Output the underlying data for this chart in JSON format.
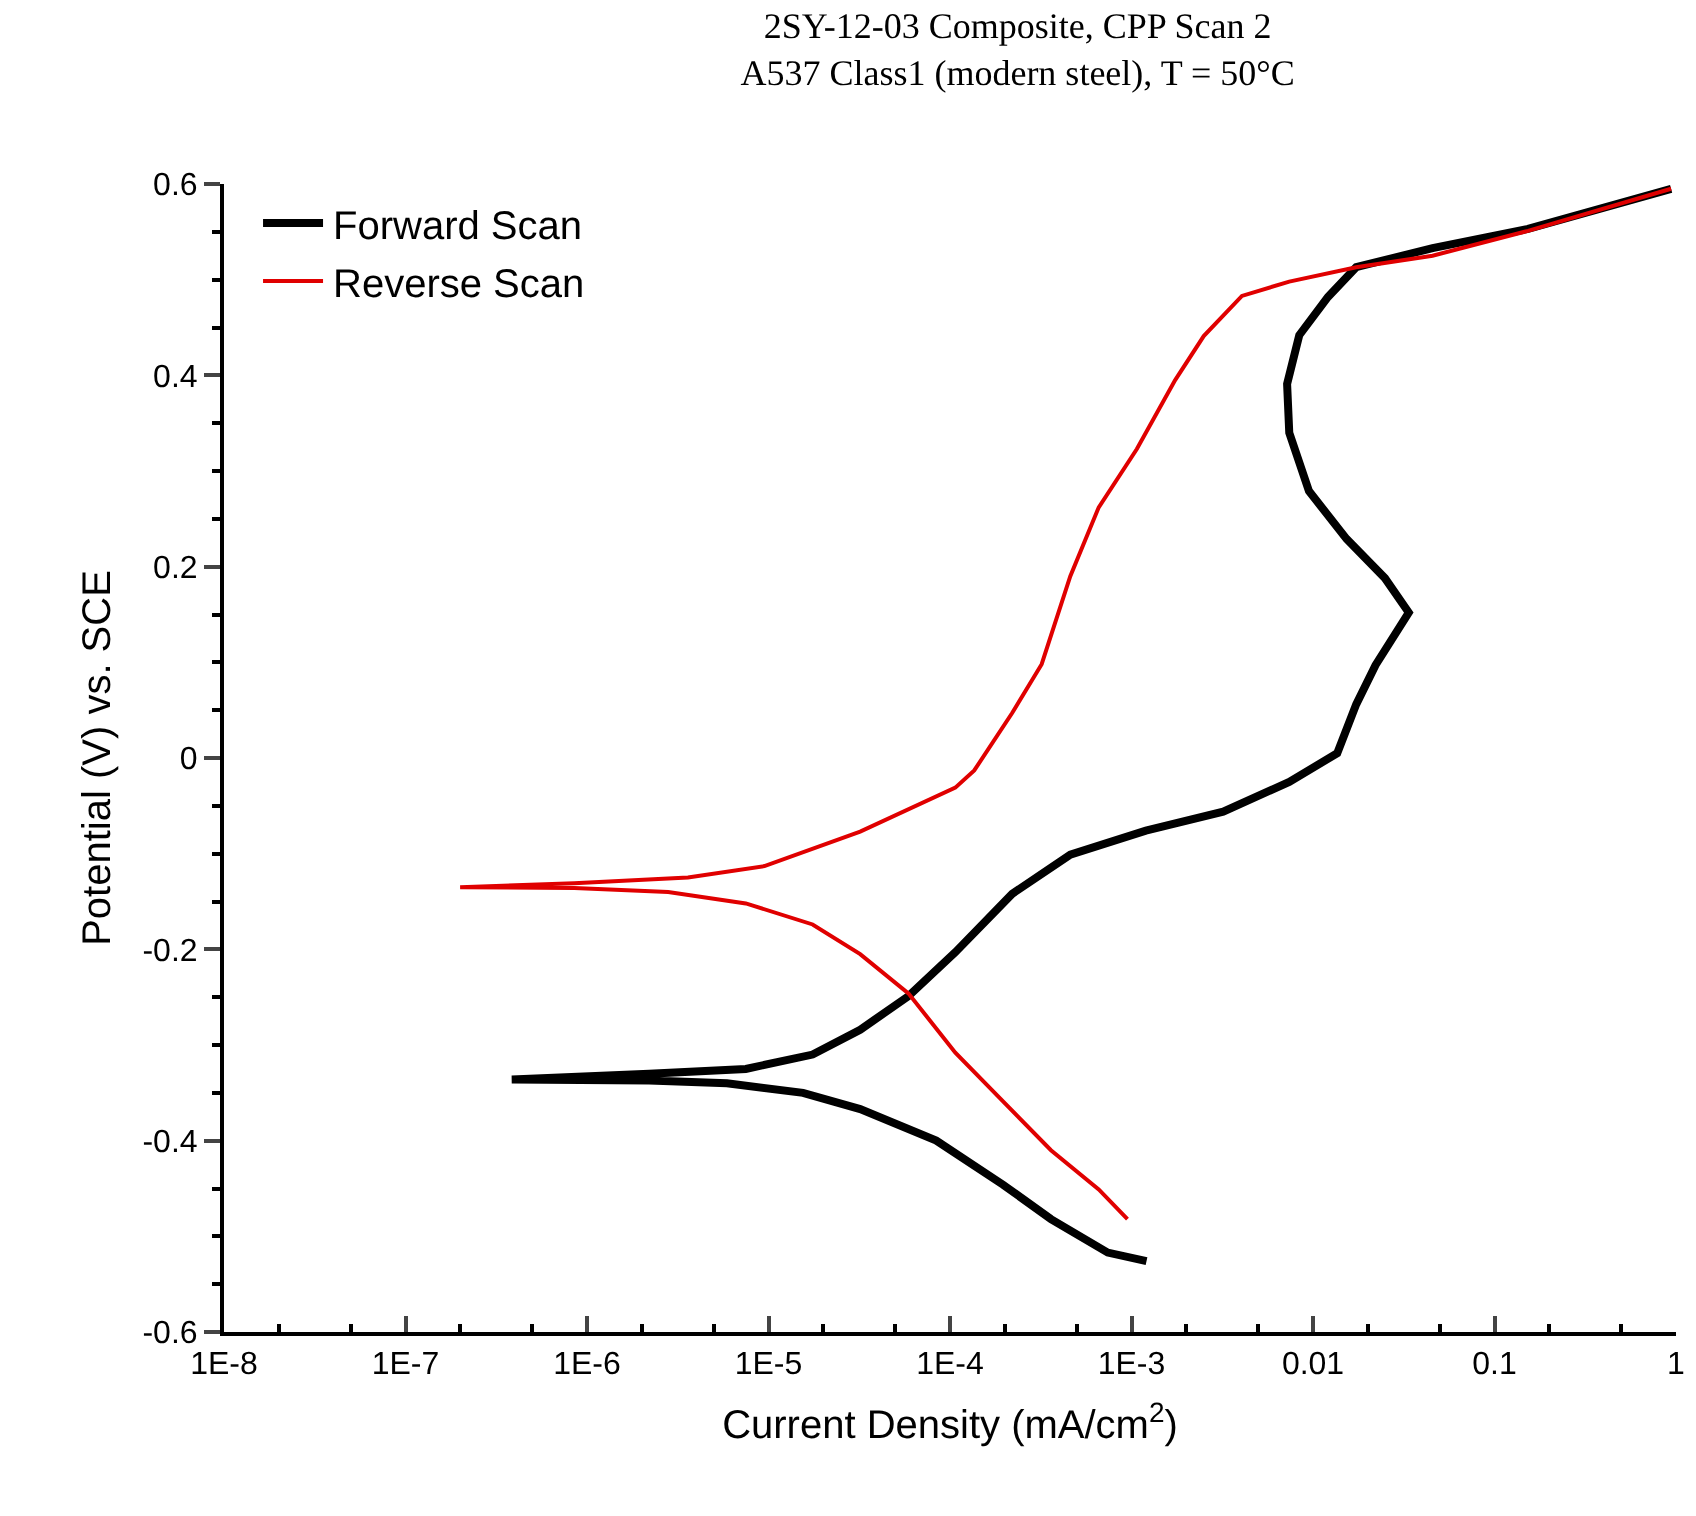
{
  "chart_data": {
    "type": "line",
    "title": "2SY-12-03 Composite, CPP Scan 2",
    "subtitle": "A537 Class1 (modern steel), T = 50°C",
    "xlabel": "Current Density (mA/cm$^{2}$)",
    "ylabel": "Potential (V) vs. SCE",
    "log": "x",
    "grid": false,
    "legend": "top left",
    "line_style": "solid",
    "marker": "none",
    "xlim": [
      1e-08,
      1
    ],
    "ylim": [
      -0.6,
      0.6
    ],
    "xticks": [
      {
        "value": 1e-08,
        "label": "1E-8"
      },
      {
        "value": 1e-07,
        "label": "1E-7"
      },
      {
        "value": 1e-06,
        "label": "1E-6"
      },
      {
        "value": 1e-05,
        "label": "1E-5"
      },
      {
        "value": 0.0001,
        "label": "1E-4"
      },
      {
        "value": 0.001,
        "label": "1E-3"
      },
      0.01,
      0.1,
      1
    ],
    "yticks": [
      -0.6,
      -0.4,
      -0.2,
      0.0,
      0.2,
      0.4,
      0.6
    ],
    "series": [
      {
        "name": "Forward Scan",
        "color": "#000000",
        "x": [
          0.00121,
          0.00074,
          0.00036,
          0.000196,
          8.4e-05,
          3.2e-05,
          1.55e-05,
          5.9e-06,
          2.2e-06,
          3.85e-07,
          2.2e-06,
          7.5e-06,
          1.75e-05,
          3.2e-05,
          5.9e-05,
          0.000107,
          0.00022,
          0.00046,
          0.0012,
          0.0032,
          0.0074,
          0.0136,
          0.0173,
          0.0221,
          0.0337,
          0.0249,
          0.0153,
          0.0095,
          0.0074,
          0.0072,
          0.0084,
          0.0121,
          0.0173,
          0.0456,
          0.153,
          0.94
        ],
        "values": [
          -0.526,
          -0.517,
          -0.482,
          -0.446,
          -0.4,
          -0.367,
          -0.35,
          -0.34,
          -0.337,
          -0.336,
          -0.33,
          -0.325,
          -0.31,
          -0.284,
          -0.249,
          -0.203,
          -0.142,
          -0.101,
          -0.076,
          -0.056,
          -0.025,
          0.005,
          0.056,
          0.097,
          0.152,
          0.188,
          0.229,
          0.279,
          0.34,
          0.391,
          0.442,
          0.482,
          0.513,
          0.533,
          0.553,
          0.595
        ]
      },
      {
        "name": "Reverse Scan",
        "color": "#e00000",
        "x": [
          0.94,
          0.153,
          0.0456,
          0.0173,
          0.0074,
          0.00406,
          0.0025,
          0.00174,
          0.00107,
          0.00066,
          0.00046,
          0.00032,
          0.00022,
          0.000136,
          0.000107,
          3.2e-05,
          9.5e-06,
          3.6e-06,
          8.5e-07,
          2e-07,
          8.5e-07,
          2.8e-06,
          7.5e-06,
          1.75e-05,
          3.2e-05,
          5.9e-05,
          0.000107,
          0.000196,
          0.00036,
          0.00066,
          0.00095
        ],
        "values": [
          0.595,
          0.551,
          0.525,
          0.513,
          0.498,
          0.483,
          0.441,
          0.395,
          0.323,
          0.262,
          0.19,
          0.098,
          0.047,
          -0.013,
          -0.031,
          -0.077,
          -0.113,
          -0.125,
          -0.131,
          -0.135,
          -0.136,
          -0.14,
          -0.152,
          -0.174,
          -0.205,
          -0.246,
          -0.308,
          -0.359,
          -0.41,
          -0.451,
          -0.482
        ]
      }
    ]
  }
}
